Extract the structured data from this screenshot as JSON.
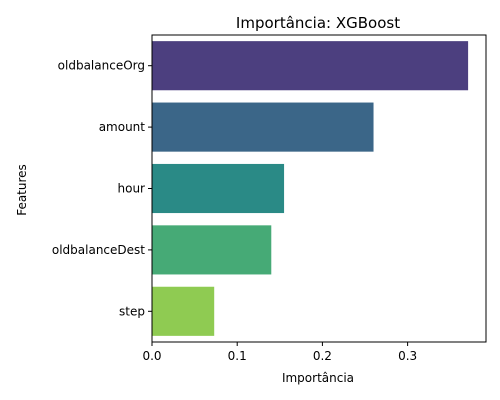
{
  "chart_data": {
    "type": "bar",
    "orientation": "horizontal",
    "title": "Importância: XGBoost",
    "xlabel": "Importância",
    "ylabel": "Features",
    "categories": [
      "oldbalanceOrg",
      "amount",
      "hour",
      "oldbalanceDest",
      "step"
    ],
    "values": [
      0.371,
      0.26,
      0.155,
      0.14,
      0.073
    ],
    "colors": [
      "#4c3f7f",
      "#3b6688",
      "#2a8a86",
      "#46aa76",
      "#8fcb52"
    ],
    "xlim": [
      0,
      0.392
    ],
    "xticks": [
      0.0,
      0.1,
      0.2,
      0.3
    ],
    "xtick_labels": [
      "0.0",
      "0.1",
      "0.2",
      "0.3"
    ],
    "grid": false,
    "legend": "none"
  }
}
